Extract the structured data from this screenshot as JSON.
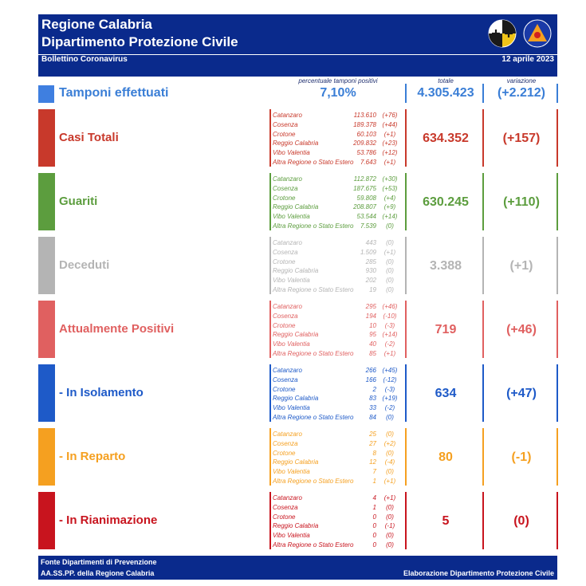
{
  "header": {
    "line1": "Regione Calabria",
    "line2": "Dipartimento Protezione Civile",
    "subtitle": "Bollettino Coronavirus",
    "date": "12 aprile 2023",
    "background_color": "#0a2a8c",
    "logos": [
      "regione-calabria-seal-icon",
      "protezione-civile-logo-icon"
    ]
  },
  "tamponi": {
    "label": "Tamponi effettuati",
    "caption_pct": "percentuale tamponi positivi",
    "caption_total": "totale",
    "caption_var": "variazione",
    "pct": "7,10%",
    "total": "4.305.423",
    "variation": "(+2.212)",
    "color": "#3a7ed6"
  },
  "sections": [
    {
      "key": "casi",
      "label": "Casi Totali",
      "total": "634.352",
      "variation": "(+157)",
      "color": "#c8392b",
      "provinces": [
        {
          "name": "Catanzaro",
          "value": "113.610",
          "delta": "(+76)"
        },
        {
          "name": "Cosenza",
          "value": "189.378",
          "delta": "(+44)"
        },
        {
          "name": "Crotone",
          "value": "60.103",
          "delta": "(+1)"
        },
        {
          "name": "Reggio Calabria",
          "value": "209.832",
          "delta": "(+23)"
        },
        {
          "name": "Vibo Valentia",
          "value": "53.786",
          "delta": "(+12)"
        },
        {
          "name": "Altra Regione o Stato Estero",
          "value": "7.643",
          "delta": "(+1)"
        }
      ]
    },
    {
      "key": "guariti",
      "label": "Guariti",
      "total": "630.245",
      "variation": "(+110)",
      "color": "#5c9d3e",
      "provinces": [
        {
          "name": "Catanzaro",
          "value": "112.872",
          "delta": "(+30)"
        },
        {
          "name": "Cosenza",
          "value": "187.675",
          "delta": "(+53)"
        },
        {
          "name": "Crotone",
          "value": "59.808",
          "delta": "(+4)"
        },
        {
          "name": "Reggio Calabria",
          "value": "208.807",
          "delta": "(+9)"
        },
        {
          "name": "Vibo Valentia",
          "value": "53.544",
          "delta": "(+14)"
        },
        {
          "name": "Altra Regione o Stato Estero",
          "value": "7.539",
          "delta": "(0)"
        }
      ]
    },
    {
      "key": "deceduti",
      "label": "Deceduti",
      "total": "3.388",
      "variation": "(+1)",
      "color": "#b4b4b4",
      "provinces": [
        {
          "name": "Catanzaro",
          "value": "443",
          "delta": "(0)"
        },
        {
          "name": "Cosenza",
          "value": "1.509",
          "delta": "(+1)"
        },
        {
          "name": "Crotone",
          "value": "285",
          "delta": "(0)"
        },
        {
          "name": "Reggio Calabria",
          "value": "930",
          "delta": "(0)"
        },
        {
          "name": "Vibo Valentia",
          "value": "202",
          "delta": "(0)"
        },
        {
          "name": "Altra Regione o Stato Estero",
          "value": "19",
          "delta": "(0)"
        }
      ]
    },
    {
      "key": "positivi",
      "label": "Attualmente Positivi",
      "total": "719",
      "variation": "(+46)",
      "color": "#e06060",
      "provinces": [
        {
          "name": "Catanzaro",
          "value": "295",
          "delta": "(+46)"
        },
        {
          "name": "Cosenza",
          "value": "194",
          "delta": "(-10)"
        },
        {
          "name": "Crotone",
          "value": "10",
          "delta": "(-3)"
        },
        {
          "name": "Reggio Calabria",
          "value": "95",
          "delta": "(+14)"
        },
        {
          "name": "Vibo Valentia",
          "value": "40",
          "delta": "(-2)"
        },
        {
          "name": "Altra Regione o Stato Estero",
          "value": "85",
          "delta": "(+1)"
        }
      ]
    },
    {
      "key": "isolamento",
      "label": "- In Isolamento",
      "total": "634",
      "variation": "(+47)",
      "color": "#1e5ac8",
      "provinces": [
        {
          "name": "Catanzaro",
          "value": "266",
          "delta": "(+45)"
        },
        {
          "name": "Cosenza",
          "value": "166",
          "delta": "(-12)"
        },
        {
          "name": "Crotone",
          "value": "2",
          "delta": "(-3)"
        },
        {
          "name": "Reggio Calabria",
          "value": "83",
          "delta": "(+19)"
        },
        {
          "name": "Vibo Valentia",
          "value": "33",
          "delta": "(-2)"
        },
        {
          "name": "Altra Regione o Stato Estero",
          "value": "84",
          "delta": "(0)"
        }
      ]
    },
    {
      "key": "reparto",
      "label": "- In Reparto",
      "total": "80",
      "variation": "(-1)",
      "color": "#f5a020",
      "provinces": [
        {
          "name": "Catanzaro",
          "value": "25",
          "delta": "(0)"
        },
        {
          "name": "Cosenza",
          "value": "27",
          "delta": "(+2)"
        },
        {
          "name": "Crotone",
          "value": "8",
          "delta": "(0)"
        },
        {
          "name": "Reggio Calabria",
          "value": "12",
          "delta": "(-4)"
        },
        {
          "name": "Vibo Valentia",
          "value": "7",
          "delta": "(0)"
        },
        {
          "name": "Altra Regione o Stato Estero",
          "value": "1",
          "delta": "(+1)"
        }
      ]
    },
    {
      "key": "rianimazione",
      "label": "- In Rianimazione",
      "total": "5",
      "variation": "(0)",
      "color": "#c8141e",
      "provinces": [
        {
          "name": "Catanzaro",
          "value": "4",
          "delta": "(+1)"
        },
        {
          "name": "Cosenza",
          "value": "1",
          "delta": "(0)"
        },
        {
          "name": "Crotone",
          "value": "0",
          "delta": "(0)"
        },
        {
          "name": "Reggio Calabria",
          "value": "0",
          "delta": "(-1)"
        },
        {
          "name": "Vibo Valentia",
          "value": "0",
          "delta": "(0)"
        },
        {
          "name": "Altra Regione o Stato Estero",
          "value": "0",
          "delta": "(0)"
        }
      ]
    }
  ],
  "footer": {
    "line1": "Fonte Dipartimenti di Prevenzione",
    "line2": "AA.SS.PP.  della Regione Calabria",
    "right": "Elaborazione Dipartimento Protezione Civile"
  }
}
